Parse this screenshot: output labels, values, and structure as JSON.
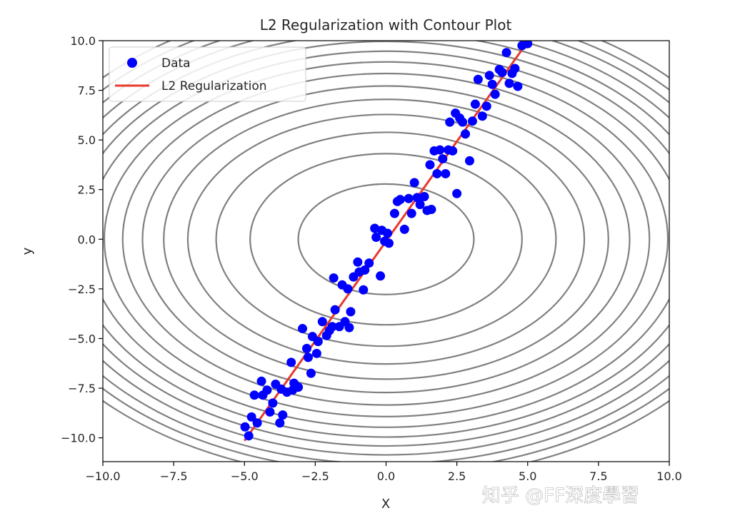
{
  "chart_data": {
    "type": "scatter",
    "title": "L2 Regularization with Contour Plot",
    "xlabel": "X",
    "ylabel": "y",
    "xlim": [
      -10,
      10
    ],
    "ylim": [
      -11.2,
      10
    ],
    "xticks": [
      "−10.0",
      "−7.5",
      "−5.0",
      "−2.5",
      "0.0",
      "2.5",
      "5.0",
      "7.5",
      "10.0"
    ],
    "yticks": [
      "−10.0",
      "−7.5",
      "−5.0",
      "−2.5",
      "0.0",
      "2.5",
      "5.0",
      "7.5",
      "10.0"
    ],
    "xtick_values": [
      -10,
      -7.5,
      -5,
      -2.5,
      0,
      2.5,
      5,
      7.5,
      10
    ],
    "ytick_values": [
      -10,
      -7.5,
      -5,
      -2.5,
      0,
      2.5,
      5,
      7.5,
      10
    ],
    "grid": false,
    "legend_position": "upper-left",
    "colors": {
      "data": "#0000ff",
      "line": "#e8392b",
      "contour": "#808080"
    },
    "contours": {
      "function": "x^2/2 + y^2/2",
      "semi_axes_x": [
        3.1,
        4.8,
        6.0,
        7.0,
        7.85,
        8.6,
        9.3,
        9.95,
        10.55,
        11.1,
        11.6,
        12.1,
        12.6,
        13.05,
        13.5
      ],
      "y_to_x_ratio": 0.63
    },
    "series": [
      {
        "name": "Data",
        "kind": "scatter",
        "points": [
          [
            -4.98,
            -9.45
          ],
          [
            -4.85,
            -9.9
          ],
          [
            -4.75,
            -8.95
          ],
          [
            -4.65,
            -7.85
          ],
          [
            -4.55,
            -9.25
          ],
          [
            -4.4,
            -7.15
          ],
          [
            -4.35,
            -7.85
          ],
          [
            -4.2,
            -7.6
          ],
          [
            -4.1,
            -8.7
          ],
          [
            -4.0,
            -8.25
          ],
          [
            -3.9,
            -7.3
          ],
          [
            -3.75,
            -9.25
          ],
          [
            -3.7,
            -7.55
          ],
          [
            -3.65,
            -8.85
          ],
          [
            -3.5,
            -7.7
          ],
          [
            -3.35,
            -6.2
          ],
          [
            -3.3,
            -7.6
          ],
          [
            -3.25,
            -7.25
          ],
          [
            -3.1,
            -7.45
          ],
          [
            -2.95,
            -4.5
          ],
          [
            -2.8,
            -5.5
          ],
          [
            -2.75,
            -5.95
          ],
          [
            -2.65,
            -6.75
          ],
          [
            -2.6,
            -4.9
          ],
          [
            -2.45,
            -5.75
          ],
          [
            -2.4,
            -5.15
          ],
          [
            -2.25,
            -4.15
          ],
          [
            -2.1,
            -4.85
          ],
          [
            -2.0,
            -4.6
          ],
          [
            -1.9,
            -4.4
          ],
          [
            -1.85,
            -1.95
          ],
          [
            -1.8,
            -3.55
          ],
          [
            -1.65,
            -4.4
          ],
          [
            -1.55,
            -2.3
          ],
          [
            -1.45,
            -4.15
          ],
          [
            -1.35,
            -2.5
          ],
          [
            -1.3,
            -4.45
          ],
          [
            -1.25,
            -3.65
          ],
          [
            -1.15,
            -1.9
          ],
          [
            -1.0,
            -1.15
          ],
          [
            -0.95,
            -1.65
          ],
          [
            -0.8,
            -2.55
          ],
          [
            -0.75,
            -1.55
          ],
          [
            -0.6,
            -1.2
          ],
          [
            -0.4,
            0.55
          ],
          [
            -0.35,
            0.1
          ],
          [
            -0.2,
            -1.85
          ],
          [
            -0.15,
            0.45
          ],
          [
            -0.05,
            -0.1
          ],
          [
            0.05,
            0.3
          ],
          [
            0.1,
            -0.2
          ],
          [
            0.3,
            1.3
          ],
          [
            0.4,
            1.9
          ],
          [
            0.5,
            2.0
          ],
          [
            0.65,
            0.5
          ],
          [
            0.8,
            2.05
          ],
          [
            0.9,
            1.3
          ],
          [
            1.0,
            2.85
          ],
          [
            1.1,
            2.1
          ],
          [
            1.2,
            1.75
          ],
          [
            1.35,
            2.15
          ],
          [
            1.45,
            1.45
          ],
          [
            1.6,
            1.5
          ],
          [
            1.55,
            3.75
          ],
          [
            1.7,
            4.45
          ],
          [
            1.8,
            3.3
          ],
          [
            1.9,
            4.5
          ],
          [
            2.0,
            4.05
          ],
          [
            2.1,
            3.3
          ],
          [
            2.2,
            4.5
          ],
          [
            2.25,
            5.9
          ],
          [
            2.35,
            4.45
          ],
          [
            2.45,
            6.35
          ],
          [
            2.5,
            2.3
          ],
          [
            2.6,
            6.1
          ],
          [
            2.7,
            5.9
          ],
          [
            2.8,
            5.3
          ],
          [
            2.95,
            3.95
          ],
          [
            3.05,
            5.95
          ],
          [
            3.15,
            6.8
          ],
          [
            3.25,
            8.05
          ],
          [
            3.4,
            6.2
          ],
          [
            3.55,
            6.7
          ],
          [
            3.65,
            8.25
          ],
          [
            3.75,
            7.8
          ],
          [
            3.85,
            7.3
          ],
          [
            4.0,
            8.55
          ],
          [
            4.1,
            8.4
          ],
          [
            4.25,
            9.4
          ],
          [
            4.35,
            7.85
          ],
          [
            4.45,
            8.35
          ],
          [
            4.55,
            8.6
          ],
          [
            4.65,
            7.7
          ],
          [
            4.8,
            9.75
          ],
          [
            5.0,
            9.85
          ]
        ]
      },
      {
        "name": "L2 Regularization",
        "kind": "line",
        "x": [
          -5.0,
          5.0
        ],
        "y": [
          -10.15,
          9.95
        ]
      }
    ]
  },
  "watermark": {
    "text": "知乎 @FF深度學習"
  }
}
